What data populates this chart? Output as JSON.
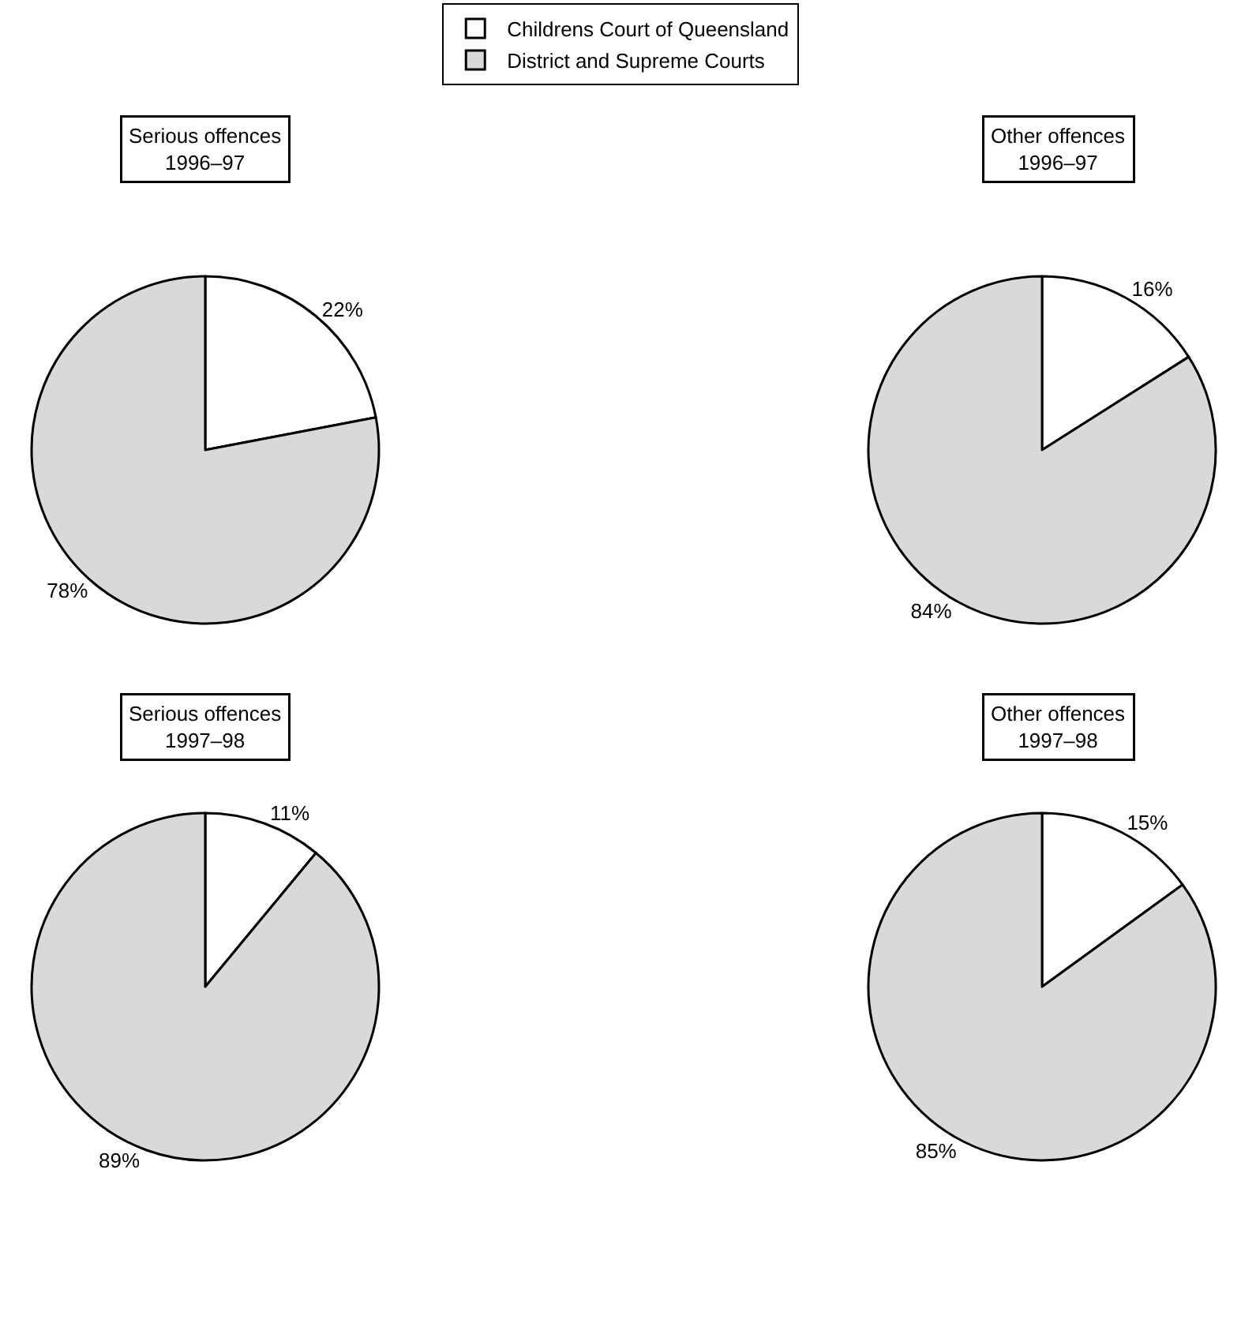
{
  "chart_data": [
    {
      "type": "pie",
      "title": "Serious offences",
      "subtitle": "1996–97",
      "categories": [
        "Childrens Court of Queensland",
        "District and Supreme Courts"
      ],
      "values": [
        22,
        78
      ],
      "value_labels": [
        "22%",
        "78%"
      ],
      "colors": [
        "#ffffff",
        "#d9d9d9"
      ],
      "legend": "top"
    },
    {
      "type": "pie",
      "title": "Other offences",
      "subtitle": "1996–97",
      "categories": [
        null,
        null
      ],
      "values": [
        16,
        84
      ],
      "value_labels": [
        "16%",
        "84%"
      ],
      "colors": [
        "#ffffff",
        "#d9d9d9"
      ]
    },
    {
      "type": "pie",
      "title": "Serious offences",
      "subtitle": "1997–98",
      "categories": [
        null,
        null
      ],
      "values": [
        11,
        89
      ],
      "value_labels": [
        "11%",
        "89%"
      ],
      "colors": [
        "#ffffff",
        "#d9d9d9"
      ]
    },
    {
      "type": "pie",
      "title": "Other offences",
      "subtitle": "1997–98",
      "categories": [
        null,
        null
      ],
      "values": [
        15,
        85
      ],
      "value_labels": [
        "15%",
        "85%"
      ],
      "colors": [
        "#ffffff",
        "#d9d9d9"
      ]
    }
  ]
}
